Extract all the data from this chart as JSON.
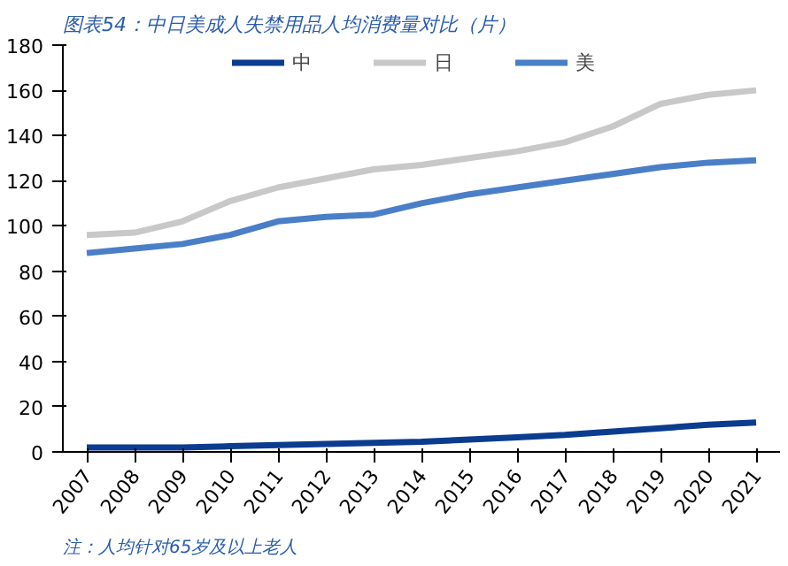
{
  "chart_data": {
    "type": "line",
    "title": "图表54：中日美成人失禁用品人均消费量对比（片）",
    "annotations": [
      "注：人均针对65岁及以上老人"
    ],
    "categories": [
      "2007",
      "2008",
      "2009",
      "2010",
      "2011",
      "2012",
      "2013",
      "2014",
      "2015",
      "2016",
      "2017",
      "2018",
      "2019",
      "2020",
      "2021"
    ],
    "series": [
      {
        "name": "中",
        "color": "#0b3c8f",
        "values": [
          2,
          2,
          2,
          2.5,
          3,
          3.5,
          4,
          4.5,
          5.5,
          6.5,
          7.5,
          9,
          10.5,
          12,
          13
        ]
      },
      {
        "name": "日",
        "color": "#c8c8c8",
        "values": [
          96,
          97,
          102,
          111,
          117,
          121,
          125,
          127,
          130,
          133,
          137,
          144,
          154,
          158,
          160
        ]
      },
      {
        "name": "美",
        "color": "#4a7fc8",
        "values": [
          88,
          90,
          92,
          96,
          102,
          104,
          105,
          110,
          114,
          117,
          120,
          123,
          126,
          128,
          129
        ]
      }
    ],
    "ylim": [
      0,
      180
    ],
    "yticks": [
      0,
      20,
      40,
      60,
      80,
      100,
      120,
      140,
      160,
      180
    ],
    "grid": false,
    "legend": "top",
    "marker": "none",
    "line_style": "solid"
  }
}
